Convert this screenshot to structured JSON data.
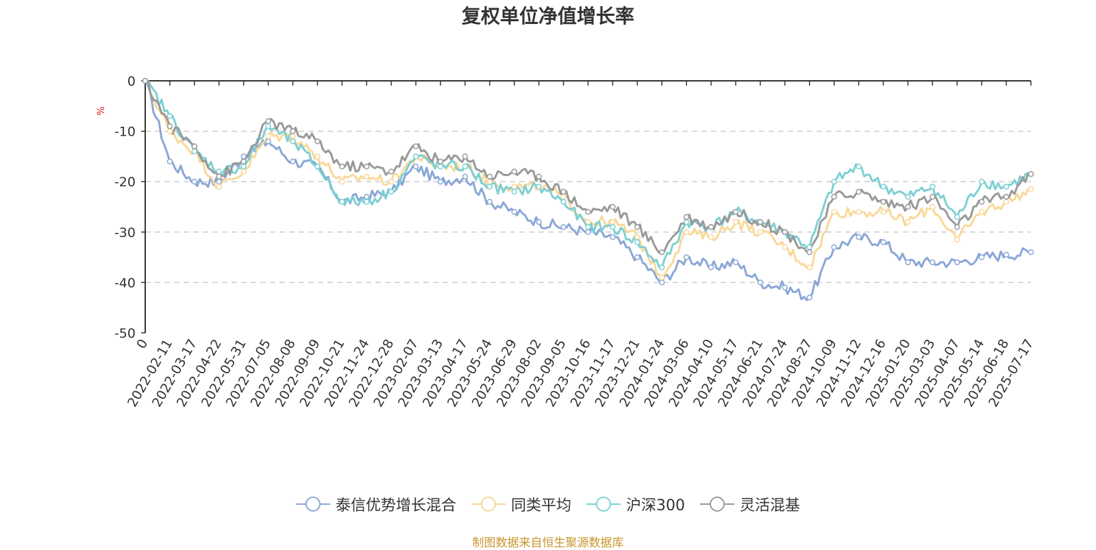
{
  "chart_data": {
    "type": "line",
    "title": "复权单位净值增长率",
    "ylabel": "%",
    "ylim": [
      -50,
      0
    ],
    "y_ticks": [
      0,
      -10,
      -20,
      -30,
      -40,
      -50
    ],
    "x_tick_labels": [
      "0",
      "2022-02-11",
      "2022-03-17",
      "2022-04-22",
      "2022-05-31",
      "2022-07-05",
      "2022-08-08",
      "2022-09-09",
      "2022-10-21",
      "2022-11-24",
      "2022-12-28",
      "2023-02-07",
      "2023-03-13",
      "2023-04-17",
      "2023-05-24",
      "2023-06-29",
      "2023-08-02",
      "2023-09-05",
      "2023-10-16",
      "2023-11-17",
      "2023-12-21",
      "2024-01-24",
      "2024-03-06",
      "2024-04-10",
      "2024-05-17",
      "2024-06-21",
      "2024-07-24",
      "2024-08-27",
      "2024-10-09",
      "2024-11-12",
      "2024-12-16",
      "2025-01-20",
      "2025-03-03",
      "2025-04-07",
      "2025-05-14",
      "2025-06-18",
      "2025-07-17"
    ],
    "grid": "horizontal-dashed",
    "legend_position": "bottom",
    "series": [
      {
        "name": "泰信优势增长混合",
        "color": "#8aa7d6",
        "values": [
          0,
          -16,
          -20,
          -20,
          -15,
          -12,
          -16,
          -17,
          -24,
          -23,
          -22,
          -17,
          -20,
          -19,
          -24,
          -26,
          -28,
          -29,
          -30,
          -31,
          -35,
          -40,
          -35,
          -37,
          -36,
          -40,
          -41,
          -43,
          -33,
          -31,
          -32,
          -36,
          -36,
          -36,
          -35,
          -34.5,
          -34
        ]
      },
      {
        "name": "同类平均",
        "color": "#f9d899",
        "values": [
          0,
          -10,
          -14,
          -21,
          -18,
          -11,
          -11,
          -15,
          -20,
          -19,
          -20,
          -15,
          -17,
          -17,
          -20,
          -21,
          -21,
          -23,
          -28,
          -28,
          -31,
          -39,
          -30,
          -31,
          -28,
          -30,
          -33,
          -37,
          -26,
          -26,
          -26,
          -28,
          -25,
          -31.5,
          -26,
          -24,
          -21.5
        ]
      },
      {
        "name": "沪深300",
        "color": "#7dd0d3",
        "values": [
          0,
          -7,
          -14,
          -18,
          -17,
          -9,
          -12,
          -17,
          -24,
          -24,
          -22,
          -15,
          -17,
          -17,
          -21,
          -22,
          -21,
          -24,
          -29,
          -29,
          -32,
          -37,
          -28,
          -29,
          -26,
          -28,
          -30,
          -33,
          -20,
          -17,
          -21,
          -23,
          -21,
          -27,
          -20,
          -21,
          -18.5
        ]
      },
      {
        "name": "灵活混基",
        "color": "#999999",
        "values": [
          0,
          -9,
          -13,
          -19,
          -16,
          -8,
          -10,
          -12,
          -17,
          -17,
          -18,
          -13,
          -16,
          -15,
          -19,
          -18,
          -19,
          -22,
          -26,
          -25,
          -29,
          -34,
          -27,
          -29,
          -26,
          -28,
          -30,
          -34,
          -23,
          -22,
          -24,
          -25,
          -23,
          -29,
          -24,
          -23,
          -18.5
        ]
      }
    ]
  },
  "legend": {
    "items": [
      "泰信优势增长混合",
      "同类平均",
      "沪深300",
      "灵活混基"
    ]
  },
  "source": "制图数据来自恒生聚源数据库"
}
